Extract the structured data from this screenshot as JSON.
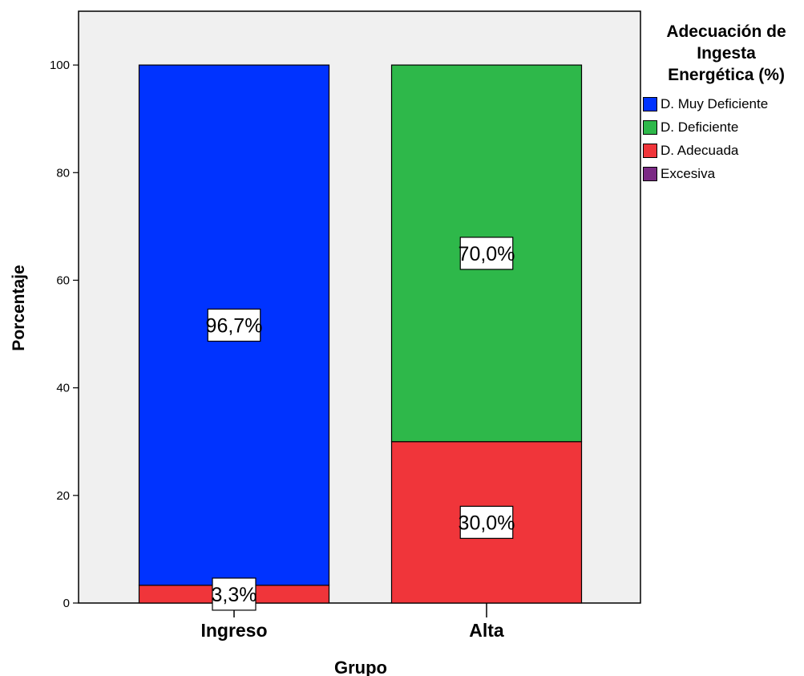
{
  "chart_data": {
    "type": "bar",
    "stacked": true,
    "categories": [
      "Ingreso",
      "Alta"
    ],
    "xlabel": "Grupo",
    "ylabel": "Porcentaje",
    "ylim": [
      0,
      110
    ],
    "yticks": [
      0,
      20,
      40,
      60,
      80,
      100
    ],
    "grid": false,
    "background_color": "#f0f0f0",
    "legend": {
      "title": "Adecuación de Ingesta Energética (%)",
      "title_lines": [
        "Adecuación de",
        "Ingesta",
        "Energética (%)"
      ],
      "position": "right-top",
      "entries": [
        {
          "name": "D. Muy Deficiente",
          "color": "#0033ff"
        },
        {
          "name": "D. Deficiente",
          "color": "#2eb84a"
        },
        {
          "name": "D. Adecuada",
          "color": "#f0353a"
        },
        {
          "name": "Excesiva",
          "color": "#7b2a85"
        }
      ]
    },
    "series": [
      {
        "name": "D. Adecuada",
        "color": "#f0353a",
        "values": [
          3.3,
          30.0
        ],
        "labels": [
          "3,3%",
          "30,0%"
        ]
      },
      {
        "name": "D. Deficiente",
        "color": "#2eb84a",
        "values": [
          0,
          70.0
        ],
        "labels": [
          "",
          "70,0%"
        ]
      },
      {
        "name": "D. Muy Deficiente",
        "color": "#0033ff",
        "values": [
          96.7,
          0
        ],
        "labels": [
          "96,7%",
          ""
        ]
      },
      {
        "name": "Excesiva",
        "color": "#7b2a85",
        "values": [
          0,
          0
        ],
        "labels": [
          "",
          ""
        ]
      }
    ]
  }
}
